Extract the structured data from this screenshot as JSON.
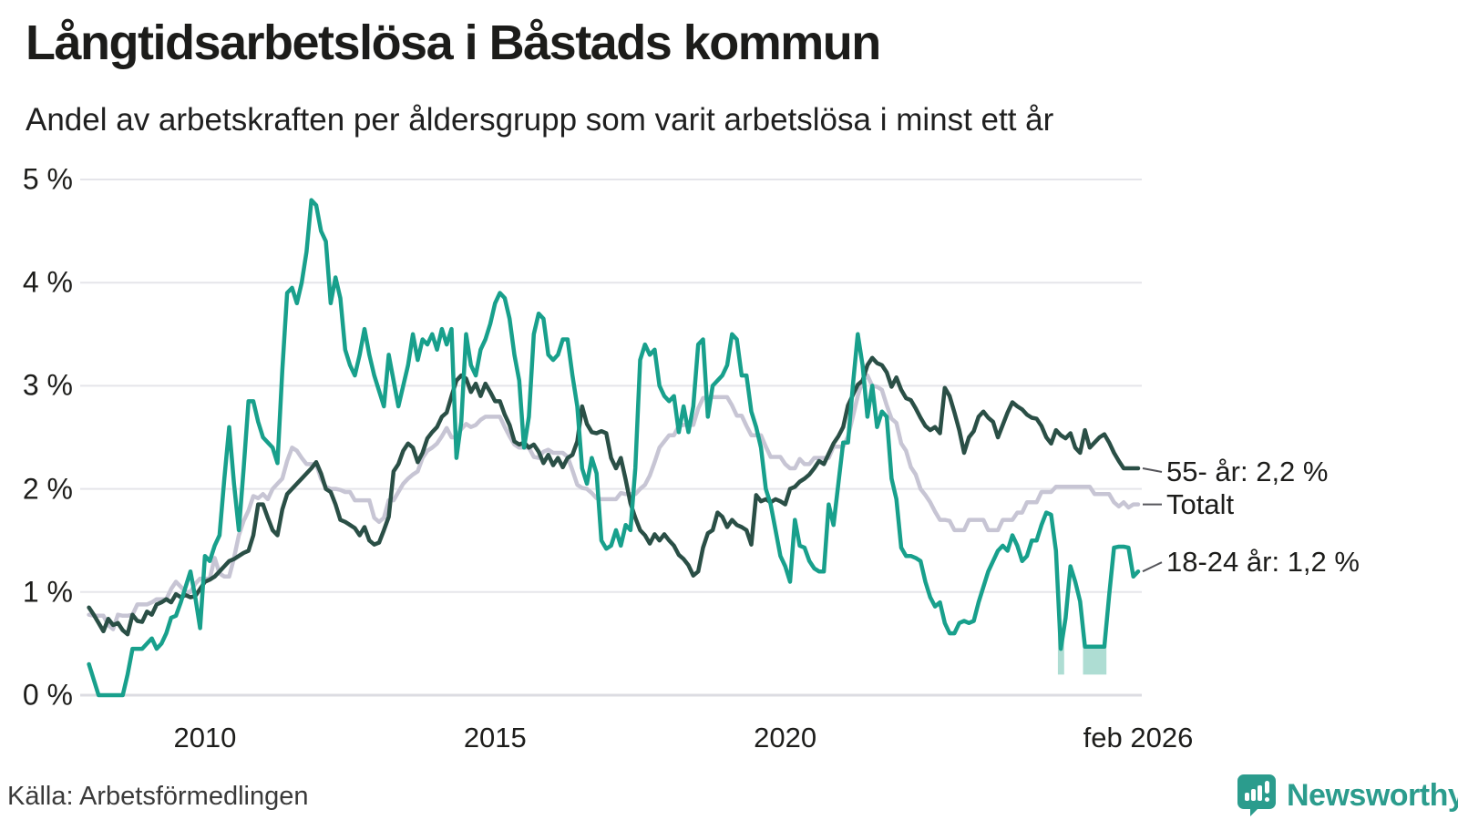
{
  "header": {
    "title": "Långtidsarbetslösa i Båstads kommun",
    "subtitle": "Andel av arbetskraften per åldersgrupp som varit arbetslösa i minst ett år"
  },
  "footer": {
    "source": "Källa: Arbetsförmedlingen",
    "brand": "Newsworthy",
    "brand_color": "#2b9c8d"
  },
  "chart_data": {
    "type": "line",
    "title": "Långtidsarbetslösa i Båstads kommun",
    "subtitle": "Andel av arbetskraften per åldersgrupp som varit arbetslösa i minst ett år",
    "unit": "% av arbetskraften",
    "x_start": {
      "year": 2008,
      "month": 1
    },
    "x_end": {
      "year": 2026,
      "month": 2
    },
    "ylim": [
      0,
      5
    ],
    "grid": true,
    "grid_color": "#e5e5ea",
    "zero_line_color": "#dcdce2",
    "y_ticks": [
      {
        "label": "0 %",
        "value": 0
      },
      {
        "label": "1 %",
        "value": 1
      },
      {
        "label": "2 %",
        "value": 2
      },
      {
        "label": "3 %",
        "value": 3
      },
      {
        "label": "4 %",
        "value": 4
      },
      {
        "label": "5 %",
        "value": 5
      }
    ],
    "x_ticks": [
      {
        "label": "2010",
        "index": 24
      },
      {
        "label": "2015",
        "index": 84
      },
      {
        "label": "2020",
        "index": 144
      },
      {
        "label": "feb 2026",
        "index": 217
      }
    ],
    "legend_position": "right-of-line-ends",
    "series": [
      {
        "name": "55- år",
        "label": "55- år: 2,2 %",
        "last_value": 2.2,
        "color": "#2a4f46",
        "z": 1,
        "values": [
          0.85,
          0.78,
          0.7,
          0.62,
          0.74,
          0.68,
          0.7,
          0.63,
          0.59,
          0.78,
          0.72,
          0.71,
          0.81,
          0.78,
          0.88,
          0.9,
          0.93,
          0.9,
          0.98,
          0.95,
          0.97,
          0.95,
          0.96,
          1.03,
          1.1,
          1.12,
          1.15,
          1.2,
          1.25,
          1.3,
          1.32,
          1.35,
          1.38,
          1.4,
          1.55,
          1.85,
          1.85,
          1.72,
          1.6,
          1.55,
          1.8,
          1.95,
          2.0,
          2.05,
          2.1,
          2.15,
          2.2,
          2.26,
          2.15,
          2.0,
          1.97,
          1.85,
          1.7,
          1.68,
          1.65,
          1.62,
          1.55,
          1.63,
          1.5,
          1.46,
          1.48,
          1.6,
          1.73,
          2.17,
          2.24,
          2.37,
          2.44,
          2.4,
          2.26,
          2.35,
          2.49,
          2.55,
          2.6,
          2.7,
          2.74,
          2.9,
          3.05,
          3.1,
          3.07,
          2.94,
          3.02,
          2.9,
          3.02,
          2.94,
          2.85,
          2.85,
          2.72,
          2.62,
          2.46,
          2.43,
          2.45,
          2.4,
          2.43,
          2.36,
          2.25,
          2.33,
          2.23,
          2.3,
          2.21,
          2.3,
          2.33,
          2.46,
          2.8,
          2.63,
          2.55,
          2.54,
          2.56,
          2.54,
          2.3,
          2.2,
          2.3,
          2.09,
          1.86,
          1.72,
          1.6,
          1.55,
          1.47,
          1.56,
          1.5,
          1.56,
          1.5,
          1.45,
          1.36,
          1.32,
          1.26,
          1.16,
          1.2,
          1.43,
          1.57,
          1.6,
          1.77,
          1.73,
          1.63,
          1.7,
          1.65,
          1.63,
          1.6,
          1.46,
          1.94,
          1.88,
          1.9,
          1.87,
          1.9,
          1.88,
          1.85,
          2.0,
          2.02,
          2.07,
          2.1,
          2.14,
          2.2,
          2.27,
          2.24,
          2.34,
          2.44,
          2.51,
          2.6,
          2.81,
          2.91,
          3.01,
          3.05,
          3.2,
          3.27,
          3.22,
          3.2,
          3.13,
          2.99,
          3.08,
          2.96,
          2.88,
          2.86,
          2.78,
          2.69,
          2.61,
          2.57,
          2.6,
          2.54,
          2.98,
          2.9,
          2.74,
          2.57,
          2.35,
          2.5,
          2.56,
          2.7,
          2.75,
          2.69,
          2.65,
          2.5,
          2.62,
          2.74,
          2.84,
          2.8,
          2.77,
          2.72,
          2.69,
          2.68,
          2.61,
          2.5,
          2.44,
          2.57,
          2.52,
          2.49,
          2.54,
          2.4,
          2.35,
          2.57,
          2.4,
          2.45,
          2.5,
          2.53,
          2.45,
          2.35,
          2.27,
          2.2,
          2.2,
          2.2,
          2.2
        ]
      },
      {
        "name": "Totalt",
        "label": "Totalt",
        "last_value": 1.85,
        "color": "#c7c5d4",
        "z": 0,
        "values": [
          0.78,
          0.77,
          0.77,
          0.77,
          0.68,
          0.64,
          0.78,
          0.77,
          0.77,
          0.78,
          0.88,
          0.88,
          0.88,
          0.9,
          0.93,
          0.93,
          0.93,
          1.03,
          1.1,
          1.05,
          1.0,
          1.0,
          1.08,
          1.13,
          1.13,
          1.13,
          1.33,
          1.18,
          1.15,
          1.15,
          1.33,
          1.55,
          1.69,
          1.79,
          1.93,
          1.91,
          1.95,
          1.9,
          2.0,
          2.05,
          2.1,
          2.27,
          2.4,
          2.37,
          2.3,
          2.24,
          2.24,
          2.24,
          2.1,
          2.02,
          2.0,
          2.0,
          1.99,
          1.97,
          1.97,
          1.89,
          1.89,
          1.89,
          1.89,
          1.72,
          1.68,
          1.72,
          1.89,
          1.89,
          1.97,
          2.05,
          2.1,
          2.14,
          2.17,
          2.3,
          2.37,
          2.4,
          2.44,
          2.51,
          2.59,
          2.5,
          2.5,
          2.58,
          2.63,
          2.6,
          2.62,
          2.67,
          2.7,
          2.7,
          2.7,
          2.7,
          2.6,
          2.51,
          2.43,
          2.4,
          2.4,
          2.4,
          2.31,
          2.3,
          2.36,
          2.38,
          2.35,
          2.35,
          2.35,
          2.31,
          2.18,
          2.04,
          2.01,
          2.0,
          1.96,
          1.91,
          1.9,
          1.9,
          1.9,
          1.9,
          1.96,
          1.95,
          1.95,
          1.95,
          2.0,
          2.04,
          2.13,
          2.26,
          2.4,
          2.46,
          2.52,
          2.52,
          2.61,
          2.62,
          2.62,
          2.62,
          2.78,
          2.88,
          2.89,
          2.89,
          2.89,
          2.89,
          2.89,
          2.81,
          2.71,
          2.71,
          2.61,
          2.52,
          2.52,
          2.52,
          2.41,
          2.31,
          2.31,
          2.31,
          2.24,
          2.2,
          2.2,
          2.29,
          2.24,
          2.24,
          2.3,
          2.3,
          2.3,
          2.3,
          2.41,
          2.41,
          2.41,
          2.51,
          2.7,
          2.9,
          3.05,
          3.1,
          3.0,
          2.99,
          2.96,
          2.81,
          2.68,
          2.64,
          2.44,
          2.37,
          2.21,
          2.14,
          2.0,
          1.94,
          1.87,
          1.78,
          1.7,
          1.7,
          1.69,
          1.6,
          1.6,
          1.6,
          1.7,
          1.7,
          1.7,
          1.7,
          1.6,
          1.6,
          1.6,
          1.7,
          1.7,
          1.7,
          1.77,
          1.77,
          1.87,
          1.87,
          1.87,
          1.97,
          1.97,
          1.97,
          2.02,
          2.02,
          2.02,
          2.02,
          2.02,
          2.02,
          2.02,
          2.02,
          1.95,
          1.95,
          1.95,
          1.95,
          1.87,
          1.83,
          1.87,
          1.82,
          1.85,
          1.85
        ]
      },
      {
        "name": "18-24 år",
        "label": "18-24 år: 1,2 %",
        "last_value": 1.2,
        "color": "#18a08c",
        "band_color": "#aeddd3",
        "z": 2,
        "uncertainty_bands": [
          {
            "from_index": 200.4,
            "to_index": 201.7,
            "floor": 0.2
          },
          {
            "from_index": 205.6,
            "to_index": 210.45,
            "floor": 0.2
          }
        ],
        "values": [
          0.3,
          0.15,
          0.0,
          0.0,
          0.0,
          0.0,
          0.0,
          0.0,
          0.2,
          0.45,
          0.45,
          0.45,
          0.5,
          0.55,
          0.45,
          0.5,
          0.6,
          0.75,
          0.77,
          0.9,
          1.05,
          1.2,
          0.95,
          0.65,
          1.35,
          1.3,
          1.45,
          1.55,
          2.1,
          2.6,
          2.05,
          1.6,
          2.2,
          2.85,
          2.85,
          2.65,
          2.5,
          2.45,
          2.4,
          2.25,
          3.15,
          3.9,
          3.95,
          3.8,
          4.0,
          4.3,
          4.8,
          4.75,
          4.5,
          4.4,
          3.8,
          4.05,
          3.85,
          3.35,
          3.2,
          3.1,
          3.3,
          3.55,
          3.3,
          3.1,
          2.95,
          2.8,
          3.3,
          3.05,
          2.8,
          3.0,
          3.2,
          3.5,
          3.25,
          3.45,
          3.4,
          3.5,
          3.35,
          3.55,
          3.4,
          3.55,
          2.3,
          2.65,
          3.5,
          3.2,
          3.1,
          3.35,
          3.45,
          3.6,
          3.8,
          3.9,
          3.85,
          3.65,
          3.3,
          3.05,
          2.4,
          2.7,
          3.5,
          3.7,
          3.65,
          3.3,
          3.25,
          3.3,
          3.45,
          3.45,
          3.1,
          2.8,
          2.2,
          2.05,
          2.3,
          2.15,
          1.5,
          1.42,
          1.45,
          1.6,
          1.45,
          1.65,
          1.6,
          2.2,
          3.25,
          3.4,
          3.3,
          3.35,
          3.0,
          2.9,
          2.85,
          2.9,
          2.55,
          2.8,
          2.55,
          2.8,
          3.4,
          3.45,
          2.7,
          3.0,
          3.05,
          3.1,
          3.2,
          3.5,
          3.45,
          3.1,
          3.1,
          2.75,
          2.6,
          2.4,
          2.0,
          1.85,
          1.6,
          1.35,
          1.25,
          1.1,
          1.7,
          1.45,
          1.43,
          1.3,
          1.23,
          1.2,
          1.2,
          1.85,
          1.65,
          2.05,
          2.45,
          2.45,
          3.0,
          3.5,
          3.2,
          2.7,
          3.0,
          2.6,
          2.75,
          2.7,
          2.1,
          1.9,
          1.43,
          1.35,
          1.35,
          1.33,
          1.3,
          1.1,
          0.95,
          0.86,
          0.9,
          0.7,
          0.6,
          0.6,
          0.7,
          0.72,
          0.7,
          0.72,
          0.9,
          1.05,
          1.2,
          1.3,
          1.4,
          1.45,
          1.4,
          1.55,
          1.45,
          1.3,
          1.35,
          1.5,
          1.5,
          1.65,
          1.77,
          1.75,
          1.4,
          0.45,
          0.75,
          1.25,
          1.1,
          0.91,
          0.47,
          0.47,
          0.47,
          0.47,
          0.47,
          0.97,
          1.43,
          1.44,
          1.44,
          1.43,
          1.15,
          1.2
        ]
      }
    ]
  }
}
